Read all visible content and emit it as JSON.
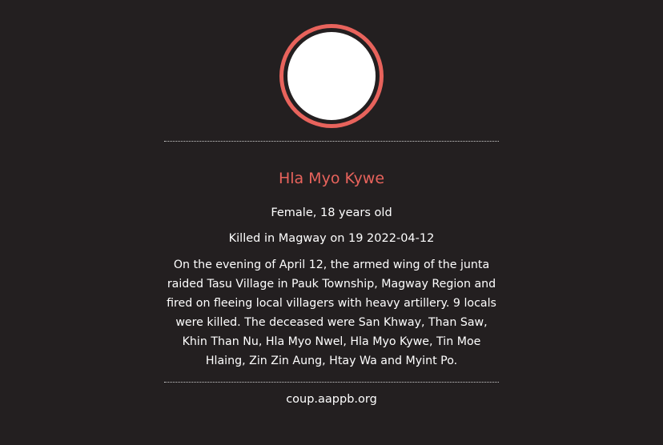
{
  "colors": {
    "background": "#231f20",
    "accent": "#e8635c",
    "text": "#ffffff"
  },
  "profile": {
    "name": "Hla Myo Kywe",
    "gender_age": "Female, 18 years old",
    "killed": "Killed in Magway on 19 2022-04-12",
    "story": "On the evening of April 12, the armed wing of the junta raided Tasu Village in Pauk Township, Magway Region and fired on fleeing local villagers with heavy artillery. 9 locals were killed. The deceased were San Khway, Than Saw, Khin Than Nu, Hla Myo Nwel, Hla Myo Kywe, Tin Moe Hlaing, Zin Zin Aung, Htay Wa and Myint Po."
  },
  "footer": {
    "source": "coup.aappb.org"
  }
}
